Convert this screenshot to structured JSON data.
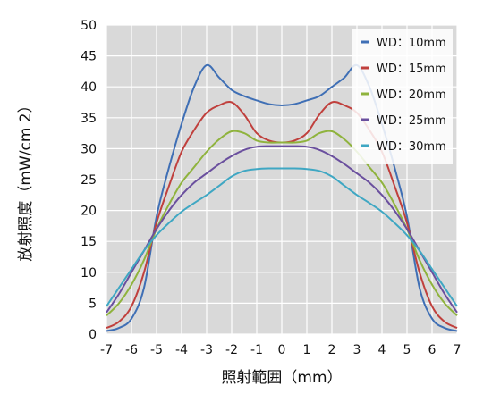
{
  "chart_data": {
    "type": "line",
    "title": "",
    "xlabel": "照射範囲（mm）",
    "ylabel": "放射照度（mW/cm 2）",
    "xlim": [
      -7,
      7
    ],
    "ylim": [
      0,
      50
    ],
    "xticks": [
      -7,
      -6,
      -5,
      -4,
      -3,
      -2,
      -1,
      0,
      1,
      2,
      3,
      4,
      5,
      6,
      7
    ],
    "yticks": [
      0,
      5,
      10,
      15,
      20,
      25,
      30,
      35,
      40,
      45,
      50
    ],
    "grid": true,
    "legend_position": "top-right",
    "series": [
      {
        "name": "WD：10mm",
        "color": "#3f6fb5",
        "x": [
          -7,
          -6.5,
          -6,
          -5.5,
          -5,
          -4.5,
          -4,
          -3.5,
          -3,
          -2.5,
          -2,
          -1.5,
          -1,
          -0.5,
          0,
          0.5,
          1,
          1.5,
          2,
          2.5,
          3,
          3.5,
          4,
          4.5,
          5,
          5.5,
          6,
          6.5,
          7
        ],
        "y": [
          0.5,
          1.0,
          2.5,
          7.5,
          19,
          27,
          34,
          40,
          43.5,
          41.5,
          39.5,
          38.5,
          37.8,
          37.2,
          37,
          37.2,
          37.8,
          38.5,
          40,
          41.5,
          43.5,
          40,
          34,
          27,
          19,
          7.5,
          2.5,
          1.0,
          0.5
        ]
      },
      {
        "name": "WD：15mm",
        "color": "#c0403d",
        "x": [
          -7,
          -6.5,
          -6,
          -5.5,
          -5,
          -4.5,
          -4,
          -3.5,
          -3,
          -2.5,
          -2,
          -1.5,
          -1,
          -0.5,
          0,
          0.5,
          1,
          1.5,
          2,
          2.5,
          3,
          3.5,
          4,
          4.5,
          5,
          5.5,
          6,
          6.5,
          7
        ],
        "y": [
          1,
          2,
          4.5,
          10,
          18,
          24,
          29.5,
          33,
          35.8,
          37,
          37.5,
          35.5,
          32.5,
          31.3,
          31,
          31.3,
          32.5,
          35.5,
          37.5,
          37,
          35.8,
          33,
          29.5,
          24,
          18,
          10,
          4.5,
          2,
          1
        ]
      },
      {
        "name": "WD：20mm",
        "color": "#8fb33d",
        "x": [
          -7,
          -6.5,
          -6,
          -5.5,
          -5,
          -4.5,
          -4,
          -3.5,
          -3,
          -2.5,
          -2,
          -1.5,
          -1,
          -0.5,
          0,
          0.5,
          1,
          1.5,
          2,
          2.5,
          3,
          3.5,
          4,
          4.5,
          5,
          5.5,
          6,
          6.5,
          7
        ],
        "y": [
          3,
          5,
          8,
          12,
          17,
          21,
          24.5,
          27,
          29.5,
          31.5,
          32.8,
          32.5,
          31.3,
          31,
          31,
          31,
          31.3,
          32.5,
          32.8,
          31.5,
          29.5,
          27,
          24.5,
          21,
          17,
          12,
          8,
          5,
          3
        ]
      },
      {
        "name": "WD：25mm",
        "color": "#6a4f9e",
        "x": [
          -7,
          -6.5,
          -6,
          -5.5,
          -5,
          -4.5,
          -4,
          -3.5,
          -3,
          -2.5,
          -2,
          -1.5,
          -1,
          -0.5,
          0,
          0.5,
          1,
          1.5,
          2,
          2.5,
          3,
          3.5,
          4,
          4.5,
          5,
          5.5,
          6,
          6.5,
          7
        ],
        "y": [
          3.5,
          6.5,
          10,
          13.5,
          17,
          20,
          22.5,
          24.5,
          26,
          27.5,
          28.8,
          29.8,
          30.3,
          30.4,
          30.4,
          30.4,
          30.3,
          29.8,
          28.8,
          27.5,
          26,
          24.5,
          22.5,
          20,
          17,
          13.5,
          10,
          6.5,
          3.5
        ]
      },
      {
        "name": "WD：30mm",
        "color": "#3fa7c3",
        "x": [
          -7,
          -6.5,
          -6,
          -5.5,
          -5,
          -4.5,
          -4,
          -3.5,
          -3,
          -2.5,
          -2,
          -1.5,
          -1,
          -0.5,
          0,
          0.5,
          1,
          1.5,
          2,
          2.5,
          3,
          3.5,
          4,
          4.5,
          5,
          5.5,
          6,
          6.5,
          7
        ],
        "y": [
          4.5,
          7.5,
          10.5,
          13.5,
          16,
          18,
          19.8,
          21.2,
          22.5,
          24,
          25.5,
          26.4,
          26.7,
          26.8,
          26.8,
          26.8,
          26.7,
          26.4,
          25.5,
          24,
          22.5,
          21.2,
          19.8,
          18,
          16,
          13.5,
          10.5,
          7.5,
          4.5
        ]
      }
    ]
  }
}
